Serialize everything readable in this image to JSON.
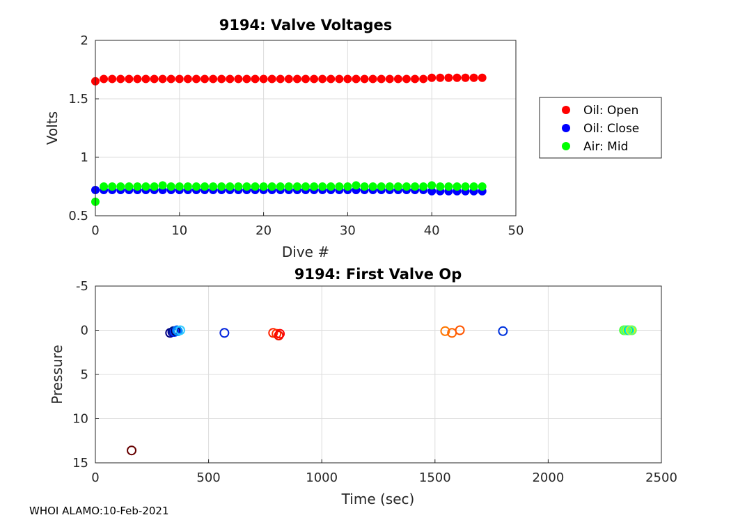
{
  "footer": "WHOI ALAMO:10-Feb-2021",
  "chart_data": [
    {
      "type": "scatter",
      "title": "9194: Valve Voltages",
      "xlabel": "Dive #",
      "ylabel": "Volts",
      "xlim": [
        0,
        50
      ],
      "ylim": [
        0.5,
        2
      ],
      "xticks": [
        0,
        10,
        20,
        30,
        40,
        50
      ],
      "yticks": [
        0.5,
        1,
        1.5,
        2
      ],
      "ytick_labels": [
        "0.5",
        "1",
        "1.5",
        "2"
      ],
      "grid": true,
      "legend_position": "outside-right",
      "series": [
        {
          "name": "Oil: Open",
          "color": "#ff0000",
          "x": [
            0,
            1,
            2,
            3,
            4,
            5,
            6,
            7,
            8,
            9,
            10,
            11,
            12,
            13,
            14,
            15,
            16,
            17,
            18,
            19,
            20,
            21,
            22,
            23,
            24,
            25,
            26,
            27,
            28,
            29,
            30,
            31,
            32,
            33,
            34,
            35,
            36,
            37,
            38,
            39,
            40,
            41,
            42,
            43,
            44,
            45,
            46
          ],
          "values": [
            1.65,
            1.67,
            1.67,
            1.67,
            1.67,
            1.67,
            1.67,
            1.67,
            1.67,
            1.67,
            1.67,
            1.67,
            1.67,
            1.67,
            1.67,
            1.67,
            1.67,
            1.67,
            1.67,
            1.67,
            1.67,
            1.67,
            1.67,
            1.67,
            1.67,
            1.67,
            1.67,
            1.67,
            1.67,
            1.67,
            1.67,
            1.67,
            1.67,
            1.67,
            1.67,
            1.67,
            1.67,
            1.67,
            1.67,
            1.67,
            1.68,
            1.68,
            1.68,
            1.68,
            1.68,
            1.68,
            1.68
          ]
        },
        {
          "name": "Oil: Close",
          "color": "#0000ff",
          "x": [
            0,
            1,
            2,
            3,
            4,
            5,
            6,
            7,
            8,
            9,
            10,
            11,
            12,
            13,
            14,
            15,
            16,
            17,
            18,
            19,
            20,
            21,
            22,
            23,
            24,
            25,
            26,
            27,
            28,
            29,
            30,
            31,
            32,
            33,
            34,
            35,
            36,
            37,
            38,
            39,
            40,
            41,
            42,
            43,
            44,
            45,
            46
          ],
          "values": [
            0.72,
            0.72,
            0.72,
            0.72,
            0.72,
            0.72,
            0.72,
            0.72,
            0.72,
            0.72,
            0.72,
            0.72,
            0.72,
            0.72,
            0.72,
            0.72,
            0.72,
            0.72,
            0.72,
            0.72,
            0.72,
            0.72,
            0.72,
            0.72,
            0.72,
            0.72,
            0.72,
            0.72,
            0.72,
            0.72,
            0.72,
            0.72,
            0.72,
            0.72,
            0.72,
            0.72,
            0.72,
            0.72,
            0.72,
            0.72,
            0.71,
            0.71,
            0.71,
            0.71,
            0.71,
            0.71,
            0.71
          ]
        },
        {
          "name": "Air: Mid",
          "color": "#00ff00",
          "x": [
            0,
            1,
            2,
            3,
            4,
            5,
            6,
            7,
            8,
            9,
            10,
            11,
            12,
            13,
            14,
            15,
            16,
            17,
            18,
            19,
            20,
            21,
            22,
            23,
            24,
            25,
            26,
            27,
            28,
            29,
            30,
            31,
            32,
            33,
            34,
            35,
            36,
            37,
            38,
            39,
            40,
            41,
            42,
            43,
            44,
            45,
            46
          ],
          "values": [
            0.62,
            0.75,
            0.75,
            0.75,
            0.75,
            0.75,
            0.75,
            0.75,
            0.76,
            0.75,
            0.75,
            0.75,
            0.75,
            0.75,
            0.75,
            0.75,
            0.75,
            0.75,
            0.75,
            0.75,
            0.75,
            0.75,
            0.75,
            0.75,
            0.75,
            0.75,
            0.75,
            0.75,
            0.75,
            0.75,
            0.75,
            0.76,
            0.75,
            0.75,
            0.75,
            0.75,
            0.75,
            0.75,
            0.75,
            0.75,
            0.76,
            0.75,
            0.75,
            0.75,
            0.75,
            0.75,
            0.75
          ]
        }
      ]
    },
    {
      "type": "scatter",
      "title": "9194: First Valve Op",
      "xlabel": "Time (sec)",
      "ylabel": "Pressure",
      "xlim": [
        0,
        2500
      ],
      "ylim": [
        -5,
        15
      ],
      "y_reversed": true,
      "xticks": [
        0,
        500,
        1000,
        1500,
        2000,
        2500
      ],
      "yticks": [
        -5,
        0,
        5,
        10,
        15
      ],
      "ytick_labels": [
        "-5",
        "0",
        "5",
        "10",
        "15"
      ],
      "grid": true,
      "marker": "open-circle",
      "points": [
        {
          "x": 160,
          "y": 13.6,
          "color": "#660000"
        },
        {
          "x": 330,
          "y": 0.3,
          "color": "#000080"
        },
        {
          "x": 340,
          "y": 0.2,
          "color": "#0000aa"
        },
        {
          "x": 345,
          "y": 0.1,
          "color": "#001a80"
        },
        {
          "x": 350,
          "y": 0.2,
          "color": "#0033ff"
        },
        {
          "x": 355,
          "y": 0.1,
          "color": "#000066"
        },
        {
          "x": 360,
          "y": 0.0,
          "color": "#0066ff"
        },
        {
          "x": 365,
          "y": 0.1,
          "color": "#0099ff"
        },
        {
          "x": 375,
          "y": 0.0,
          "color": "#33ccff"
        },
        {
          "x": 570,
          "y": 0.3,
          "color": "#0022dd"
        },
        {
          "x": 785,
          "y": 0.3,
          "color": "#ff2200"
        },
        {
          "x": 800,
          "y": 0.4,
          "color": "#ff3300"
        },
        {
          "x": 810,
          "y": 0.6,
          "color": "#ee1100"
        },
        {
          "x": 815,
          "y": 0.4,
          "color": "#ff0000"
        },
        {
          "x": 1545,
          "y": 0.1,
          "color": "#ff7700"
        },
        {
          "x": 1575,
          "y": 0.3,
          "color": "#ff6600"
        },
        {
          "x": 1610,
          "y": 0.0,
          "color": "#ff5500"
        },
        {
          "x": 1800,
          "y": 0.1,
          "color": "#0033dd"
        },
        {
          "x": 2335,
          "y": 0.0,
          "color": "#33ff33"
        },
        {
          "x": 2340,
          "y": 0.0,
          "color": "#99ff33"
        },
        {
          "x": 2345,
          "y": 0.0,
          "color": "#00ffcc"
        },
        {
          "x": 2350,
          "y": 0.0,
          "color": "#ccff00"
        },
        {
          "x": 2355,
          "y": 0.0,
          "color": "#00ee88"
        },
        {
          "x": 2360,
          "y": 0.0,
          "color": "#00ddff"
        },
        {
          "x": 2365,
          "y": 0.0,
          "color": "#ffee00"
        },
        {
          "x": 2370,
          "y": 0.0,
          "color": "#66ff66"
        }
      ]
    }
  ]
}
